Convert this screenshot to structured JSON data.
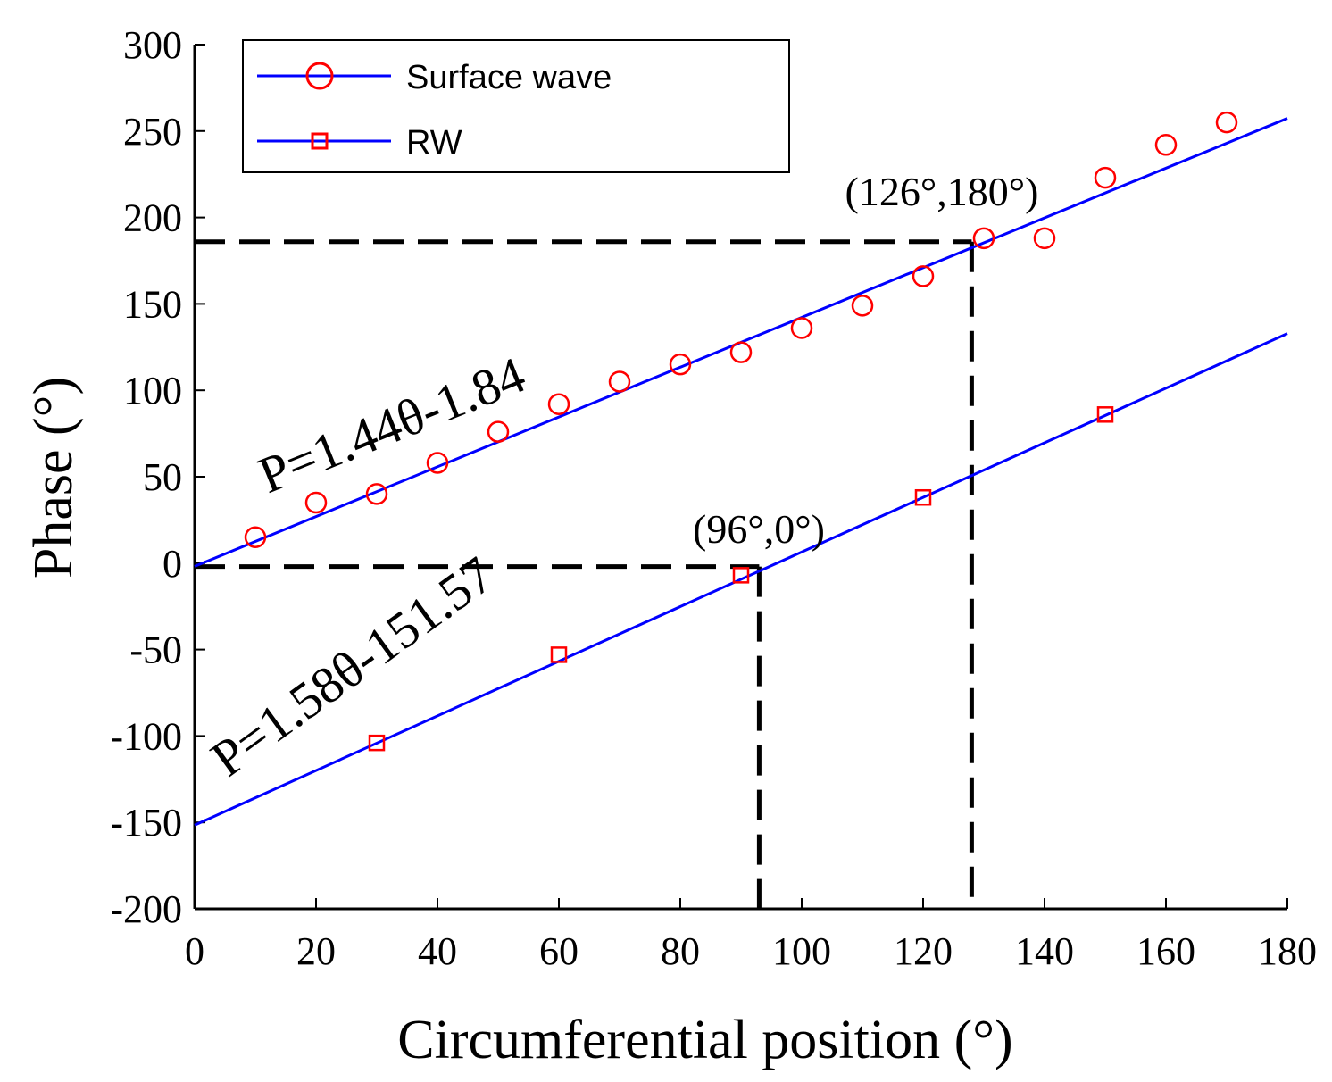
{
  "chart_data": {
    "type": "scatter",
    "xlabel": "Circumferential position (°)",
    "ylabel": "Phase (°)",
    "xlim": [
      0,
      180
    ],
    "ylim": [
      -200,
      300
    ],
    "xticks": [
      0,
      20,
      40,
      60,
      80,
      100,
      120,
      140,
      160,
      180
    ],
    "yticks": [
      -200,
      -150,
      -100,
      -50,
      0,
      50,
      100,
      150,
      200,
      250,
      300
    ],
    "grid": false,
    "legend_position": "top-left",
    "series": [
      {
        "name": "Surface wave",
        "marker": "circle",
        "marker_color": "#ff0000",
        "line_color": "#0000ff",
        "x": [
          10,
          20,
          30,
          40,
          50,
          60,
          70,
          80,
          90,
          100,
          110,
          120,
          130,
          140,
          150,
          160,
          170
        ],
        "y": [
          15,
          35,
          40,
          58,
          76,
          92,
          105,
          115,
          122,
          136,
          149,
          166,
          188,
          188,
          223,
          242,
          255
        ],
        "fit": {
          "slope": 1.44,
          "intercept": -1.84,
          "x_range": [
            0,
            180
          ]
        }
      },
      {
        "name": "RW",
        "marker": "square",
        "marker_color": "#ff0000",
        "line_color": "#0000ff",
        "x": [
          30,
          60,
          90,
          120,
          150
        ],
        "y": [
          -104,
          -53,
          -7,
          38,
          86
        ],
        "fit": {
          "slope": 1.58,
          "intercept": -151.57,
          "x_range": [
            0,
            180
          ]
        }
      }
    ],
    "annotations": [
      {
        "text": "(126°,180°)",
        "x": 126,
        "y": 180
      },
      {
        "text": "(96°,0°)",
        "x": 96,
        "y": 0
      },
      {
        "text": "P=1.44θ-1.84",
        "series": "Surface wave"
      },
      {
        "text": "P=1.58θ-151.57",
        "series": "RW"
      }
    ],
    "reference_lines": [
      {
        "style": "dashed",
        "color": "#000000",
        "horizontal_y": 186,
        "vertical_x": 128
      },
      {
        "style": "dashed",
        "color": "#000000",
        "horizontal_y": -2,
        "vertical_x": 93
      }
    ]
  }
}
